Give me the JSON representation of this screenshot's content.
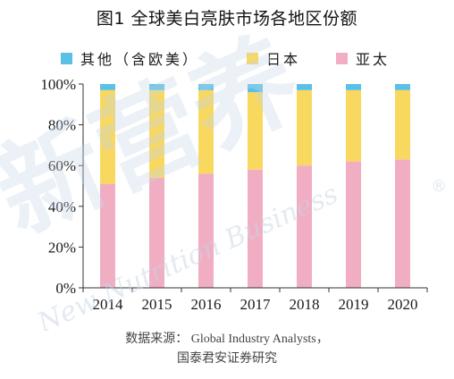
{
  "title": "图1  全球美白亮肤市场各地区份额",
  "legend": [
    {
      "label": "其他（含欧美）",
      "color": "#5bc0e6"
    },
    {
      "label": "日本",
      "color": "#f9d860"
    },
    {
      "label": "亚太",
      "color": "#f1adc2"
    }
  ],
  "watermark": {
    "main": "新营养",
    "sub": "New Nutrition Business",
    "registered": "®"
  },
  "source": {
    "line1": "数据来源：  Global Industry Analysts，",
    "line2": "国泰君安证券研究"
  },
  "chart_data": {
    "type": "bar",
    "stacked": true,
    "percent": true,
    "title": "图1  全球美白亮肤市场各地区份额",
    "categories": [
      "2014",
      "2015",
      "2016",
      "2017",
      "2018",
      "2019",
      "2020"
    ],
    "series": [
      {
        "name": "亚太",
        "color": "#f1adc2",
        "values": [
          51,
          54,
          56,
          58,
          60,
          62,
          63
        ]
      },
      {
        "name": "日本",
        "color": "#f9d860",
        "values": [
          46,
          43,
          41,
          38,
          37,
          35,
          34
        ]
      },
      {
        "name": "其他（含欧美）",
        "color": "#5bc0e6",
        "values": [
          3,
          3,
          3,
          4,
          3,
          3,
          3
        ]
      }
    ],
    "ylim": [
      0,
      100
    ],
    "yticks": [
      "0%",
      "20%",
      "40%",
      "60%",
      "80%",
      "100%"
    ],
    "ytick_values": [
      0,
      20,
      40,
      60,
      80,
      100
    ],
    "grid": false,
    "legend_position": "top"
  }
}
